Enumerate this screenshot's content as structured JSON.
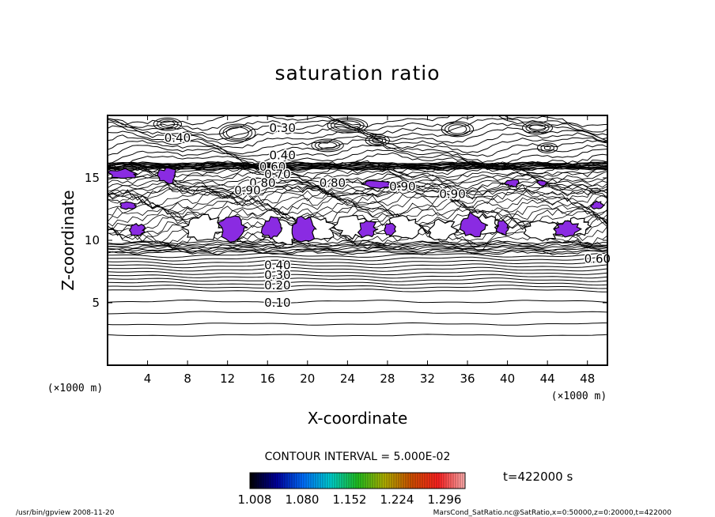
{
  "chart_data": {
    "type": "contour",
    "title": "saturation ratio",
    "xlabel": "X-coordinate",
    "ylabel": "Z-coordinate",
    "x_unit": "(×1000 m)",
    "y_unit": "(×1000 m)",
    "xlim": [
      0,
      50
    ],
    "ylim": [
      0,
      20
    ],
    "x_ticks": [
      "4",
      "8",
      "12",
      "16",
      "20",
      "24",
      "28",
      "32",
      "36",
      "40",
      "44",
      "48"
    ],
    "y_ticks": [
      "5",
      "10",
      "15"
    ],
    "contour_labels": [
      "0.30",
      "0.40",
      "0.40",
      "0.60",
      "0.70",
      "0.80",
      "0.90",
      "0.80",
      "0.90",
      "0.90",
      "0.60",
      "0.40",
      "0.30",
      "0.20",
      "0.10"
    ],
    "contour_interval_text": "CONTOUR INTERVAL = 5.000E-02",
    "shaded_threshold": 1.0,
    "colorbar_ticks": [
      "1.008",
      "1.080",
      "1.152",
      "1.224",
      "1.296"
    ],
    "time_label": "t=422000 s",
    "footer_left": "/usr/bin/gpview   2008-11-20",
    "footer_right": "MarsCond_SatRatio.nc@SatRatio,x=0:50000,z=0:20000,t=422000",
    "colors": {
      "supersat_fill": "#8a2be2",
      "colorbar_stops": [
        "#000000",
        "#0000a0",
        "#0070ff",
        "#00d0d0",
        "#20c020",
        "#b0b000",
        "#d05000",
        "#ff2020",
        "#ffb0b0"
      ]
    }
  }
}
